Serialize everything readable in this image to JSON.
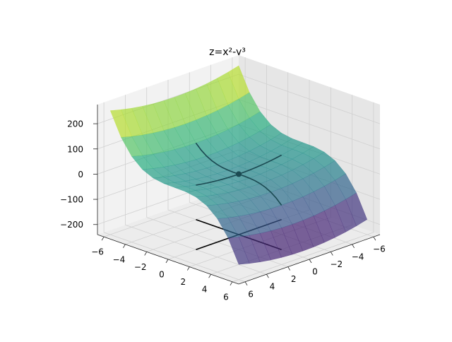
{
  "chart_data": {
    "type": "surface3d",
    "title": "z=x²-y³",
    "xlim": [
      -6.6,
      6.6
    ],
    "ylim": [
      -6.6,
      6.6
    ],
    "zlim": [
      -240,
      276
    ],
    "xticks": [
      {
        "value": -6,
        "label": "−6"
      },
      {
        "value": -4,
        "label": "−4"
      },
      {
        "value": -2,
        "label": "−2"
      },
      0,
      2,
      4,
      6
    ],
    "yticks": [
      {
        "value": -6,
        "label": "−6"
      },
      {
        "value": -4,
        "label": "−4"
      },
      {
        "value": -2,
        "label": "−2"
      },
      0,
      2,
      4,
      6
    ],
    "zticks": [
      {
        "value": -200,
        "label": "−200"
      },
      {
        "value": -100,
        "label": "−100"
      },
      0,
      100,
      200
    ],
    "grid": true,
    "surface": {
      "colormap": "viridis",
      "alpha": 0.7,
      "x": [
        -6,
        -5,
        -4,
        -3,
        -2,
        -1,
        0,
        1,
        2,
        3,
        4,
        5,
        6
      ],
      "y": [
        -6,
        -5,
        -4,
        -3,
        -2,
        -1,
        0,
        1,
        2,
        3,
        4,
        5,
        6
      ],
      "z": [
        [
          252,
          241,
          232,
          225,
          220,
          217,
          216,
          217,
          220,
          225,
          232,
          241,
          252
        ],
        [
          161,
          150,
          141,
          134,
          129,
          126,
          125,
          126,
          129,
          134,
          141,
          150,
          161
        ],
        [
          100,
          89,
          80,
          73,
          68,
          65,
          64,
          65,
          68,
          73,
          80,
          89,
          100
        ],
        [
          63,
          52,
          43,
          36,
          31,
          28,
          27,
          28,
          31,
          36,
          43,
          52,
          63
        ],
        [
          44,
          33,
          24,
          17,
          12,
          9,
          8,
          9,
          12,
          17,
          24,
          33,
          44
        ],
        [
          37,
          26,
          17,
          10,
          5,
          2,
          1,
          2,
          5,
          10,
          17,
          26,
          37
        ],
        [
          36,
          25,
          16,
          9,
          4,
          1,
          0,
          1,
          4,
          9,
          16,
          25,
          36
        ],
        [
          35,
          24,
          15,
          8,
          3,
          0,
          -1,
          0,
          3,
          8,
          15,
          24,
          35
        ],
        [
          28,
          17,
          8,
          1,
          -4,
          -7,
          -8,
          -7,
          -4,
          1,
          8,
          17,
          28
        ],
        [
          9,
          -2,
          -11,
          -18,
          -23,
          -26,
          -27,
          -26,
          -23,
          -18,
          -11,
          -2,
          9
        ],
        [
          -28,
          -39,
          -48,
          -55,
          -60,
          -63,
          -64,
          -63,
          -60,
          -55,
          -48,
          -39,
          -28
        ],
        [
          -89,
          -100,
          -109,
          -116,
          -121,
          -124,
          -125,
          -124,
          -121,
          -116,
          -109,
          -100,
          -89
        ],
        [
          -180,
          -191,
          -200,
          -207,
          -212,
          -215,
          -216,
          -215,
          -212,
          -207,
          -200,
          -191,
          -180
        ]
      ]
    },
    "floor_lines": [
      {
        "color": "#000000",
        "x": [
          -4,
          4
        ],
        "y": [
          0,
          0
        ],
        "z": [
          -240,
          -240
        ]
      },
      {
        "color": "#000000",
        "x": [
          0,
          0
        ],
        "y": [
          -4,
          4
        ],
        "z": [
          -240,
          -240
        ]
      }
    ],
    "lines": [
      {
        "color": "#1b4a52",
        "x": [
          -4,
          -3.5,
          -3,
          -2.5,
          -2,
          -1.5,
          -1,
          -0.5,
          0,
          0.5,
          1,
          1.5,
          2,
          2.5,
          3,
          3.5,
          4
        ],
        "y": [
          0,
          0,
          0,
          0,
          0,
          0,
          0,
          0,
          0,
          0,
          0,
          0,
          0,
          0,
          0,
          0,
          0
        ],
        "z": [
          16,
          12.25,
          9,
          6.25,
          4,
          2.25,
          1,
          0.25,
          0,
          0.25,
          1,
          2.25,
          4,
          6.25,
          9,
          12.25,
          16
        ]
      },
      {
        "color": "#1b4a52",
        "x": [
          0,
          0,
          0,
          0,
          0,
          0,
          0,
          0,
          0,
          0,
          0,
          0,
          0,
          0,
          0,
          0,
          0
        ],
        "y": [
          -4,
          -3.5,
          -3,
          -2.5,
          -2,
          -1.5,
          -1,
          -0.5,
          0,
          0.5,
          1,
          1.5,
          2,
          2.5,
          3,
          3.5,
          4
        ],
        "z": [
          64,
          42.875,
          27,
          15.625,
          8,
          3.375,
          1,
          0.125,
          0,
          -0.125,
          -1,
          -3.375,
          -8,
          -15.625,
          -27,
          -42.875,
          -64
        ]
      }
    ],
    "point": {
      "x": 0,
      "y": 0,
      "z": 0,
      "color": "#1b4a52"
    }
  }
}
